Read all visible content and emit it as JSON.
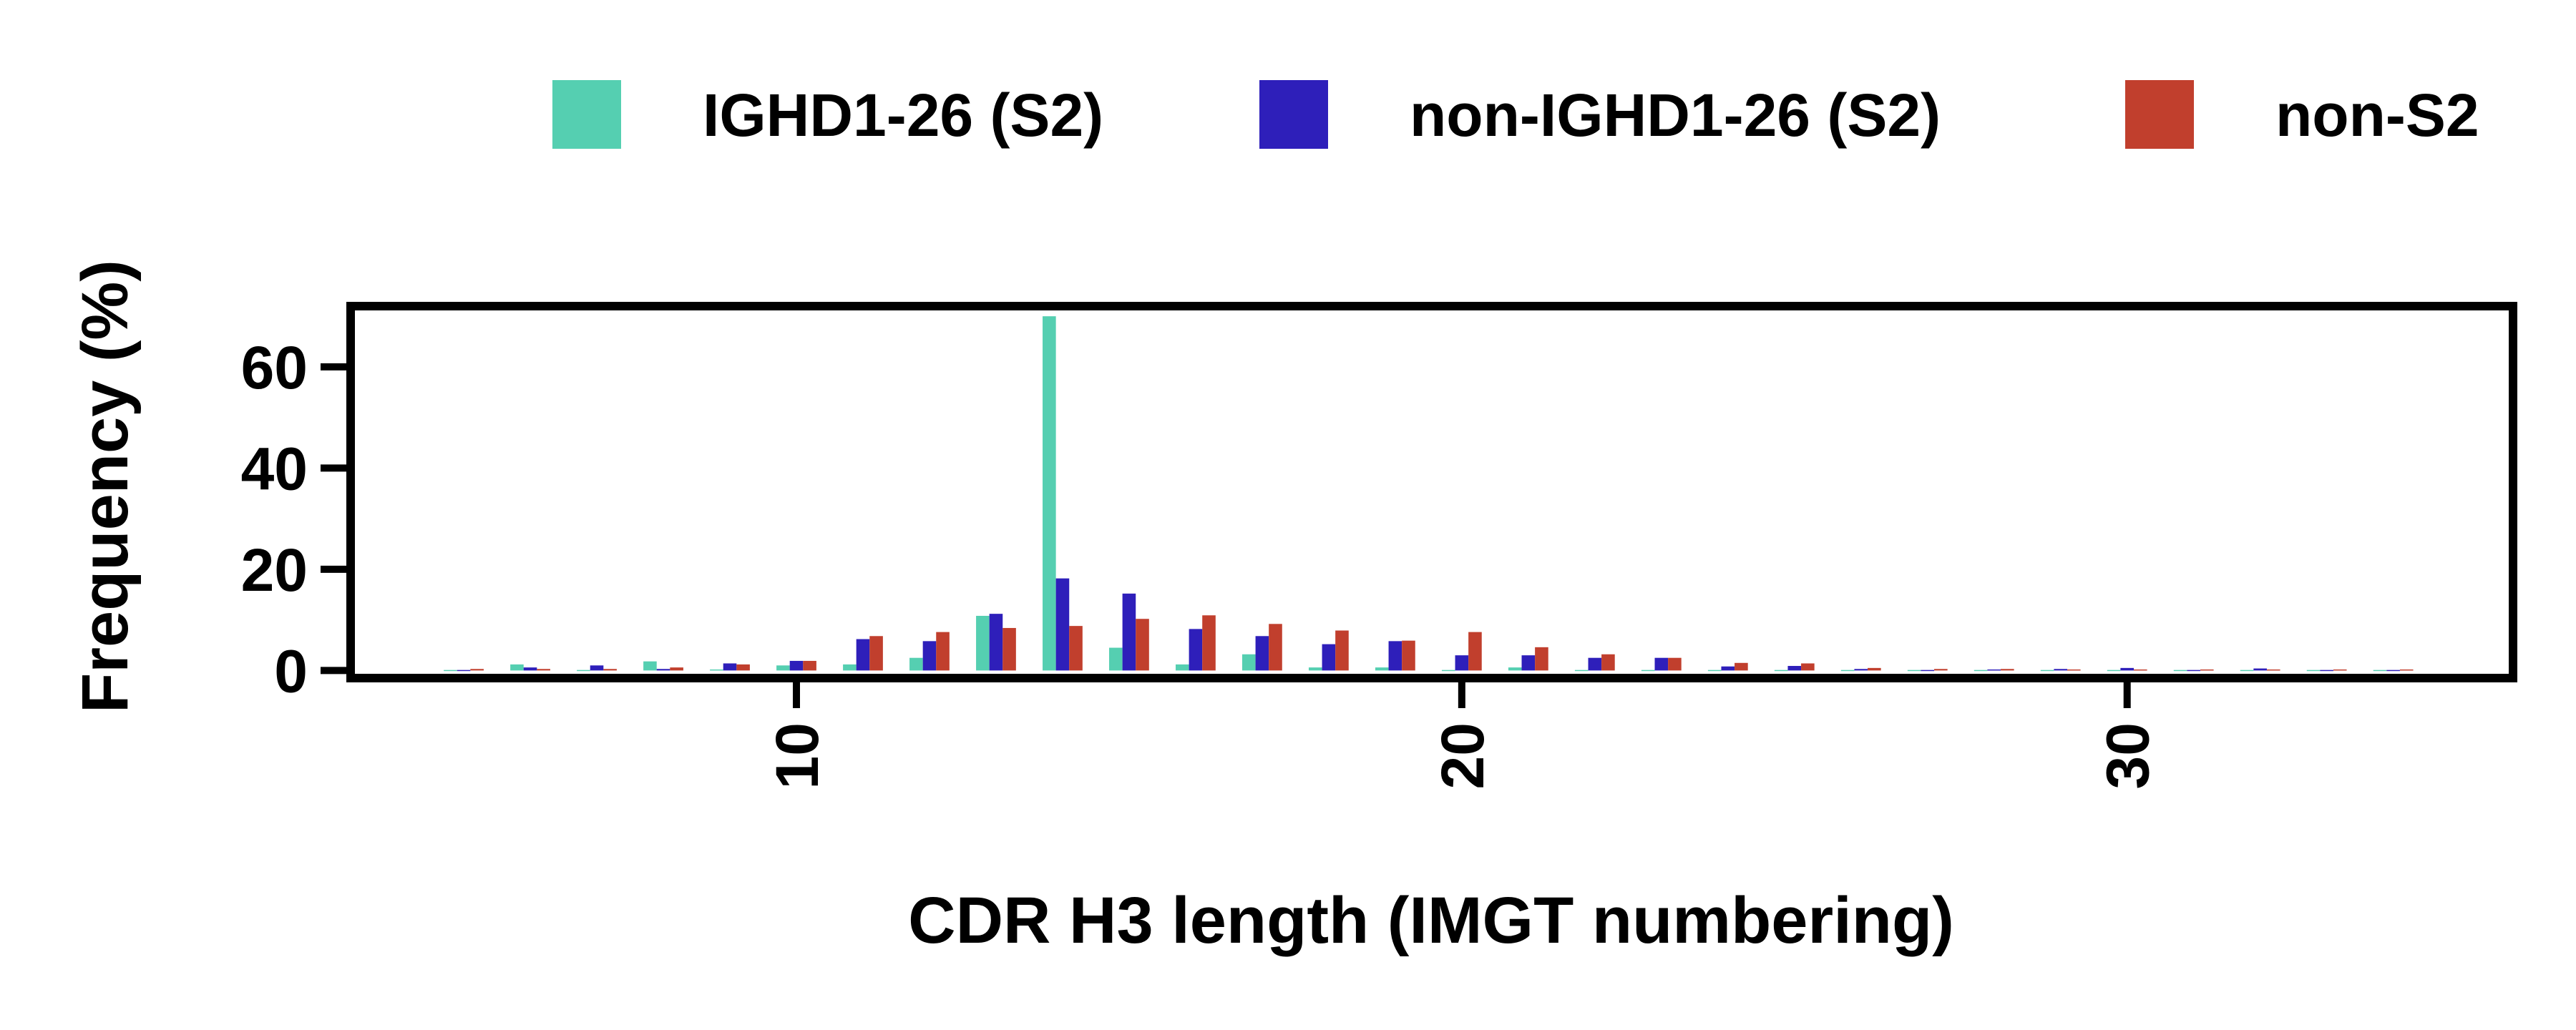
{
  "chart_data": {
    "type": "bar",
    "title": "",
    "xlabel": "CDR H3 length (IMGT numbering)",
    "ylabel": "Frequency (%)",
    "x": [
      5,
      6,
      7,
      8,
      9,
      10,
      11,
      12,
      13,
      14,
      15,
      16,
      17,
      18,
      19,
      20,
      21,
      22,
      23,
      24,
      25,
      26,
      27,
      28,
      29,
      30,
      31,
      32,
      33,
      34
    ],
    "xlim": [
      3.3,
      35.8
    ],
    "ylim": [
      -1.5,
      72
    ],
    "xticks": [
      10,
      20,
      30
    ],
    "xtick_labels": [
      "10",
      "20",
      "30"
    ],
    "yticks": [
      0,
      20,
      40,
      60
    ],
    "ytick_labels": [
      "0",
      "20",
      "40",
      "60"
    ],
    "grid": false,
    "legend_position": "top",
    "series": [
      {
        "name": "IGHD1-26 (S2)",
        "color": "#55cfb1",
        "values": [
          0.1,
          1.2,
          0.1,
          1.8,
          0.2,
          1.0,
          1.2,
          2.5,
          10.8,
          70.0,
          4.5,
          1.2,
          3.2,
          0.6,
          0.6,
          0.1,
          0.6,
          0.1,
          0.1,
          0.1,
          0.1,
          0.1,
          0.1,
          0.1,
          0.1,
          0.1,
          0.1,
          0.1,
          0.1,
          0.1
        ]
      },
      {
        "name": "non-IGHD1-26 (S2)",
        "color": "#2e1fba",
        "values": [
          0.1,
          0.6,
          1.0,
          0.3,
          1.4,
          1.9,
          6.2,
          5.8,
          11.2,
          18.2,
          15.2,
          8.2,
          6.8,
          5.2,
          5.8,
          3.0,
          3.0,
          2.5,
          2.5,
          0.8,
          0.9,
          0.3,
          0.1,
          0.2,
          0.3,
          0.5,
          0.1,
          0.4,
          0.1,
          0.1
        ]
      },
      {
        "name": "non-S2",
        "color": "#c13f2d",
        "values": [
          0.3,
          0.3,
          0.3,
          0.6,
          1.2,
          1.9,
          6.8,
          7.6,
          8.4,
          8.8,
          10.2,
          10.9,
          9.2,
          7.9,
          5.9,
          7.6,
          4.6,
          3.2,
          2.5,
          1.5,
          1.4,
          0.5,
          0.3,
          0.3,
          0.2,
          0.2,
          0.2,
          0.2,
          0.2,
          0.2
        ]
      }
    ]
  }
}
